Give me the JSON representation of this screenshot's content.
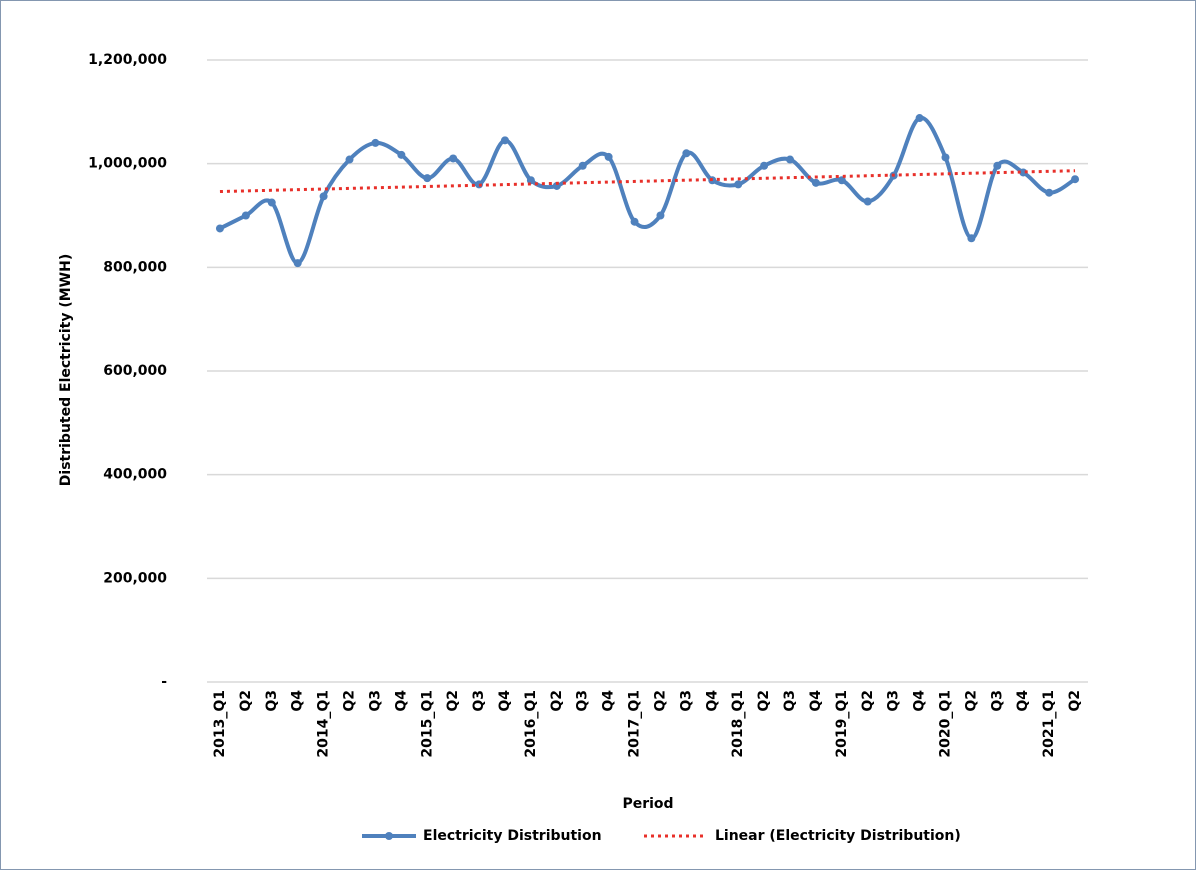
{
  "chart_data": {
    "type": "line",
    "x_label": "Period",
    "y_label": "Distributed Electricity (MWH)",
    "categories": [
      "2013_Q1",
      "Q2",
      "Q3",
      "Q4",
      "2014_Q1",
      "Q2",
      "Q3",
      "Q4",
      "2015_Q1",
      "Q2",
      "Q3",
      "Q4",
      "2016_Q1",
      "Q2",
      "Q3",
      "Q4",
      "2017_Q1",
      "Q2",
      "Q3",
      "Q4",
      "2018_Q1",
      "Q2",
      "Q3",
      "Q4",
      "2019_Q1",
      "Q2",
      "Q3",
      "Q4",
      "2020_Q1",
      "Q2",
      "Q3",
      "Q4",
      "2021_Q1",
      "Q2"
    ],
    "series": [
      {
        "name": "Electricity Distribution",
        "color": "#4f81bd",
        "smooth": true,
        "values": [
          875000,
          900000,
          925000,
          808000,
          937000,
          1008000,
          1040000,
          1017000,
          972000,
          1010000,
          960000,
          1045000,
          968000,
          957000,
          996000,
          1013000,
          888000,
          900000,
          1020000,
          968000,
          960000,
          996000,
          1008000,
          963000,
          968000,
          927000,
          977000,
          1088000,
          1012000,
          856000,
          996000,
          983000,
          944000,
          970000
        ]
      },
      {
        "name": "Linear (Electricity Distribution)",
        "color": "#e8302a",
        "trendline": "linear",
        "of_series": 0
      }
    ],
    "ylim": [
      0,
      1200000
    ],
    "yticks": [
      {
        "value": 0,
        "label": "-"
      },
      {
        "value": 200000,
        "label": "200,000"
      },
      {
        "value": 400000,
        "label": "400,000"
      },
      {
        "value": 600000,
        "label": "600,000"
      },
      {
        "value": 800000,
        "label": "800,000"
      },
      {
        "value": 1000000,
        "label": "1,000,000"
      },
      {
        "value": 1200000,
        "label": "1,200,000"
      }
    ],
    "grid": true,
    "legend": "bottom"
  }
}
